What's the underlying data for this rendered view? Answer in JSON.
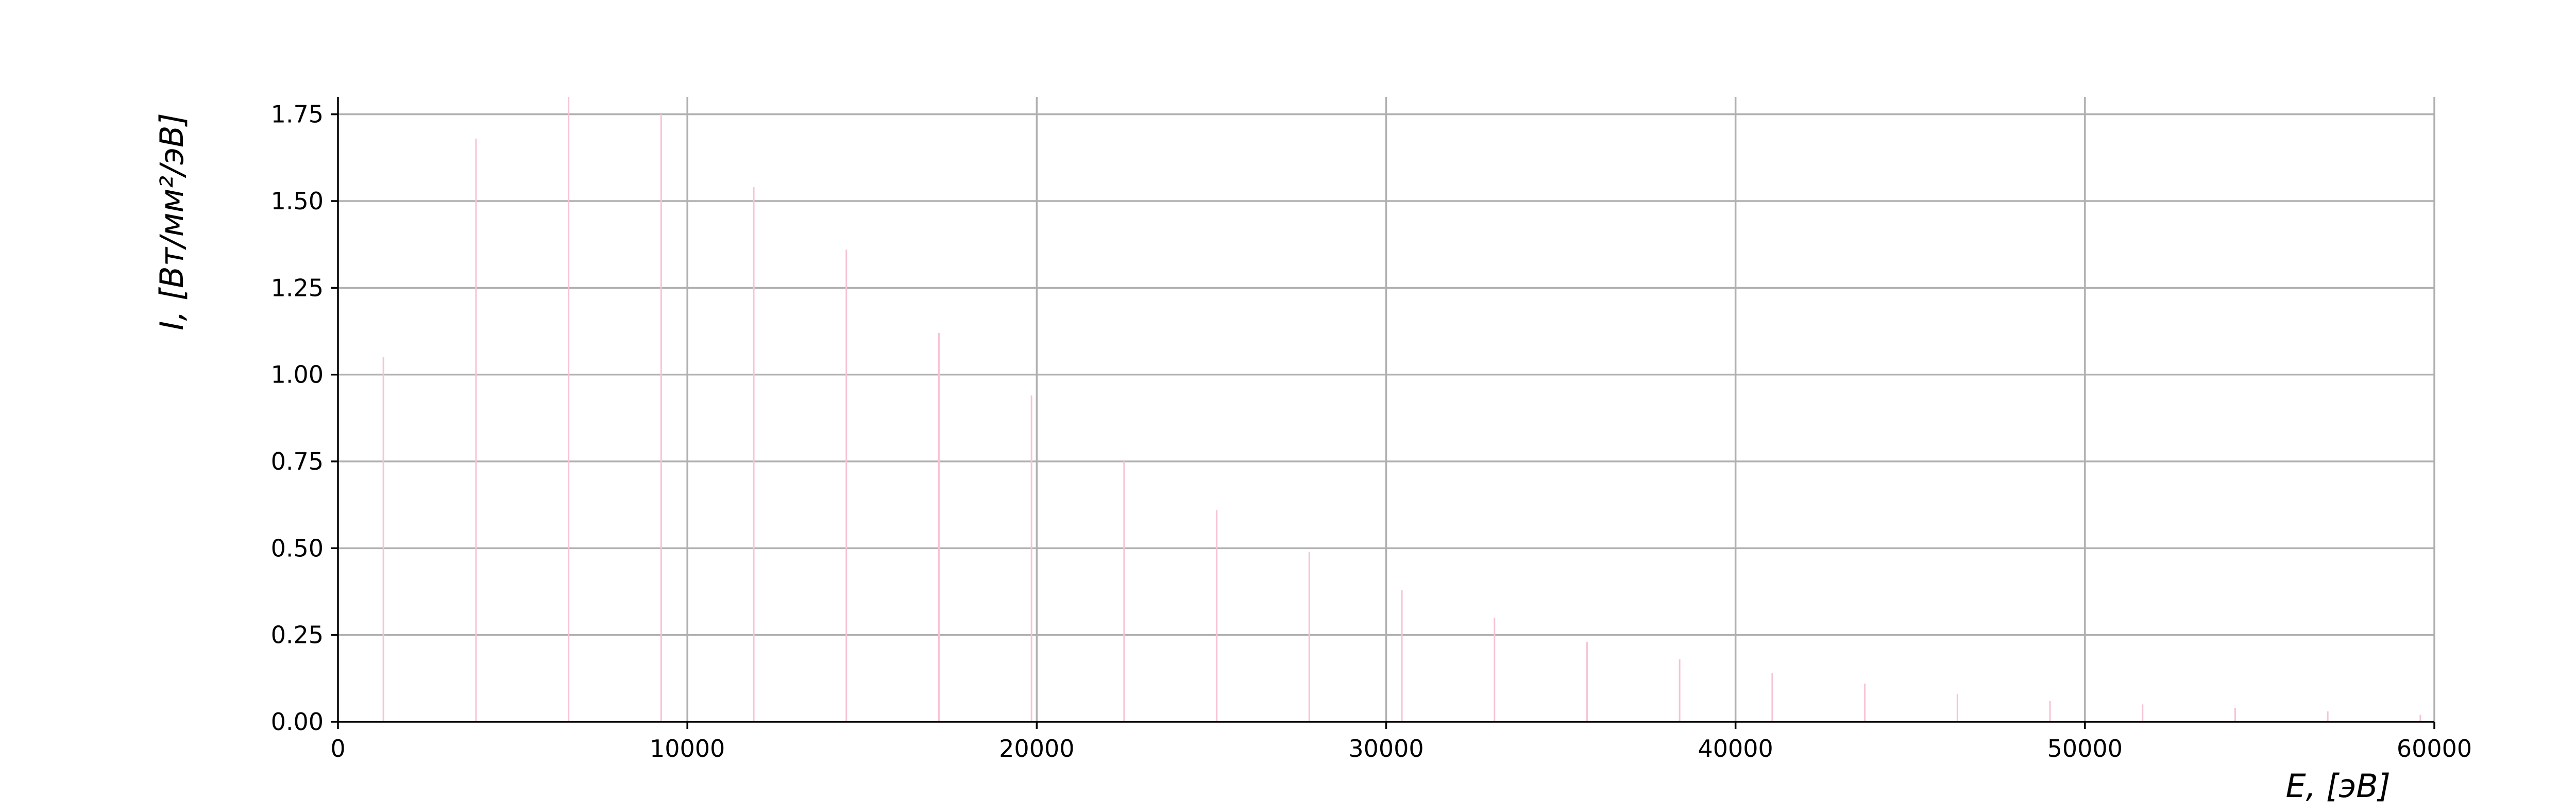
{
  "chart_data": {
    "type": "bar",
    "title": "",
    "xlabel": "E, [эВ]",
    "ylabel": "I, [Вт/мм²/эВ]",
    "xlim": [
      0,
      60000
    ],
    "ylim": [
      0,
      1.8
    ],
    "xticks": [
      0,
      10000,
      20000,
      30000,
      40000,
      50000,
      60000
    ],
    "xtick_labels": [
      "0",
      "10000",
      "20000",
      "30000",
      "40000",
      "50000",
      "60000"
    ],
    "yticks": [
      0,
      0.25,
      0.5,
      0.75,
      1.0,
      1.25,
      1.5,
      1.75
    ],
    "ytick_labels": [
      "0.00",
      "0.25",
      "0.50",
      "0.75",
      "1.00",
      "1.25",
      "1.50",
      "1.75"
    ],
    "grid": true,
    "color": "#f7c3d2",
    "series": [
      {
        "x": [
          1300,
          3950,
          6600,
          9250,
          11900,
          14550,
          17200,
          19850,
          22500,
          25150,
          27800,
          30450,
          33100,
          35750,
          38400,
          41050,
          43700,
          46350,
          49000,
          51650,
          54300,
          56950,
          59600
        ],
        "values": [
          1.05,
          1.68,
          1.8,
          1.75,
          1.54,
          1.36,
          1.12,
          0.94,
          0.75,
          0.61,
          0.49,
          0.38,
          0.3,
          0.23,
          0.18,
          0.14,
          0.11,
          0.08,
          0.06,
          0.05,
          0.04,
          0.03,
          0.02
        ]
      }
    ]
  }
}
